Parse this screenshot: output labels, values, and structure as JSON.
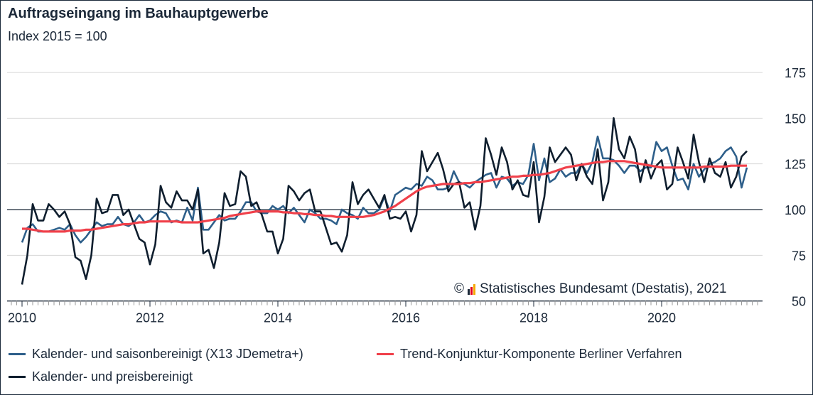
{
  "chart_data": {
    "type": "line",
    "title": "Auftragseingang im Bauhauptgewerbe",
    "subtitle": "Index 2015 = 100",
    "xlabel": "",
    "ylabel": "",
    "start_month": "2010-01",
    "frequency": "monthly",
    "ylim": [
      50,
      180
    ],
    "yticks": [
      50,
      75,
      100,
      125,
      150,
      175
    ],
    "ytick_labels": [
      "50",
      "75",
      "100",
      "125",
      "150",
      "175"
    ],
    "xticks": [
      "2010",
      "2012",
      "2014",
      "2016",
      "2018",
      "2020"
    ],
    "reference_line": 100,
    "grid": true,
    "legend_position": "bottom",
    "source": "Statistisches Bundesamt (Destatis), 2021",
    "copyright_symbol": "©",
    "series": [
      {
        "name": "Kalender- und saisonbereinigt (X13 JDemetra+)",
        "color": "#2e5f8a",
        "values": [
          82,
          90,
          92,
          88,
          88,
          88,
          89,
          90,
          89,
          92,
          86,
          82,
          85,
          89,
          93,
          91,
          92,
          92,
          96,
          92,
          91,
          93,
          97,
          93,
          94,
          97,
          99,
          98,
          93,
          94,
          93,
          101,
          94,
          112,
          89,
          89,
          93,
          97,
          94,
          95,
          95,
          99,
          104,
          104,
          99,
          98,
          98,
          102,
          100,
          102,
          98,
          101,
          97,
          93,
          100,
          98,
          95,
          95,
          94,
          92,
          100,
          98,
          97,
          95,
          101,
          98,
          98,
          100,
          107,
          99,
          108,
          110,
          112,
          111,
          114,
          113,
          118,
          116,
          111,
          111,
          112,
          121,
          115,
          114,
          112,
          115,
          117,
          119,
          120,
          112,
          118,
          117,
          113,
          115,
          114,
          119,
          136,
          116,
          128,
          115,
          117,
          122,
          118,
          120,
          120,
          125,
          120,
          126,
          140,
          128,
          128,
          127,
          124,
          120,
          124,
          124,
          121,
          123,
          123,
          137,
          132,
          134,
          124,
          116,
          117,
          111,
          125,
          118,
          122,
          125,
          126,
          128,
          132,
          134,
          129,
          112,
          123
        ]
      },
      {
        "name": "Kalender- und preisbereinigt",
        "color": "#0f1e2e",
        "values": [
          59,
          75,
          103,
          94,
          94,
          103,
          100,
          96,
          99,
          92,
          74,
          72,
          62,
          75,
          106,
          98,
          99,
          108,
          108,
          97,
          100,
          92,
          84,
          82,
          70,
          81,
          113,
          104,
          101,
          110,
          105,
          105,
          100,
          111,
          76,
          78,
          68,
          82,
          109,
          102,
          103,
          121,
          118,
          102,
          104,
          97,
          88,
          88,
          76,
          84,
          113,
          110,
          105,
          109,
          111,
          99,
          99,
          90,
          81,
          82,
          77,
          86,
          115,
          103,
          108,
          111,
          106,
          101,
          108,
          95,
          96,
          95,
          99,
          88,
          97,
          132,
          121,
          126,
          131,
          122,
          110,
          114,
          115,
          101,
          104,
          89,
          102,
          139,
          130,
          119,
          134,
          126,
          111,
          116,
          108,
          107,
          126,
          93,
          107,
          134,
          126,
          130,
          134,
          130,
          116,
          125,
          118,
          114,
          133,
          105,
          115,
          150,
          133,
          128,
          140,
          133,
          115,
          127,
          117,
          124,
          127,
          111,
          114,
          134,
          126,
          117,
          141,
          126,
          115,
          128,
          120,
          118,
          126,
          112,
          118,
          129,
          132
        ]
      },
      {
        "name": "Trend-Konjunktur-Komponente Berliner Verfahren",
        "color": "#f0404a",
        "values": [
          89.5,
          89.5,
          89,
          88.5,
          88,
          88,
          88,
          88,
          88,
          88.5,
          88.5,
          88.5,
          89,
          89,
          89.5,
          90,
          90.5,
          91,
          91.5,
          92,
          92,
          92.5,
          93,
          93,
          93.5,
          93.5,
          93.5,
          93.5,
          93.5,
          93.5,
          93,
          93,
          93,
          93,
          93.5,
          94,
          94.5,
          95,
          95.5,
          96.5,
          97,
          97.5,
          98,
          98.5,
          99,
          99,
          99,
          99,
          99,
          98.5,
          98.5,
          98,
          98,
          97.5,
          97.5,
          97,
          97,
          96.5,
          96.5,
          96,
          96,
          96,
          96,
          96,
          96,
          96.5,
          97,
          98,
          99,
          100.5,
          102,
          104,
          106,
          108,
          110,
          111.5,
          112.5,
          113,
          113.5,
          114,
          114,
          114,
          114,
          114.5,
          114.5,
          115,
          115,
          115.5,
          116,
          116.5,
          117,
          117.5,
          118,
          118,
          118.5,
          118.5,
          119,
          119,
          119.5,
          120,
          121,
          122,
          123,
          123.5,
          124,
          124.5,
          125,
          125.5,
          126,
          126,
          126.5,
          126.5,
          126.5,
          126.5,
          126,
          125.5,
          125,
          124.5,
          124,
          123.5,
          123,
          123,
          123,
          123,
          123,
          123,
          123,
          123,
          123.5,
          123.5,
          123.5,
          123.5,
          123.5,
          124,
          124,
          124,
          124
        ]
      }
    ]
  }
}
